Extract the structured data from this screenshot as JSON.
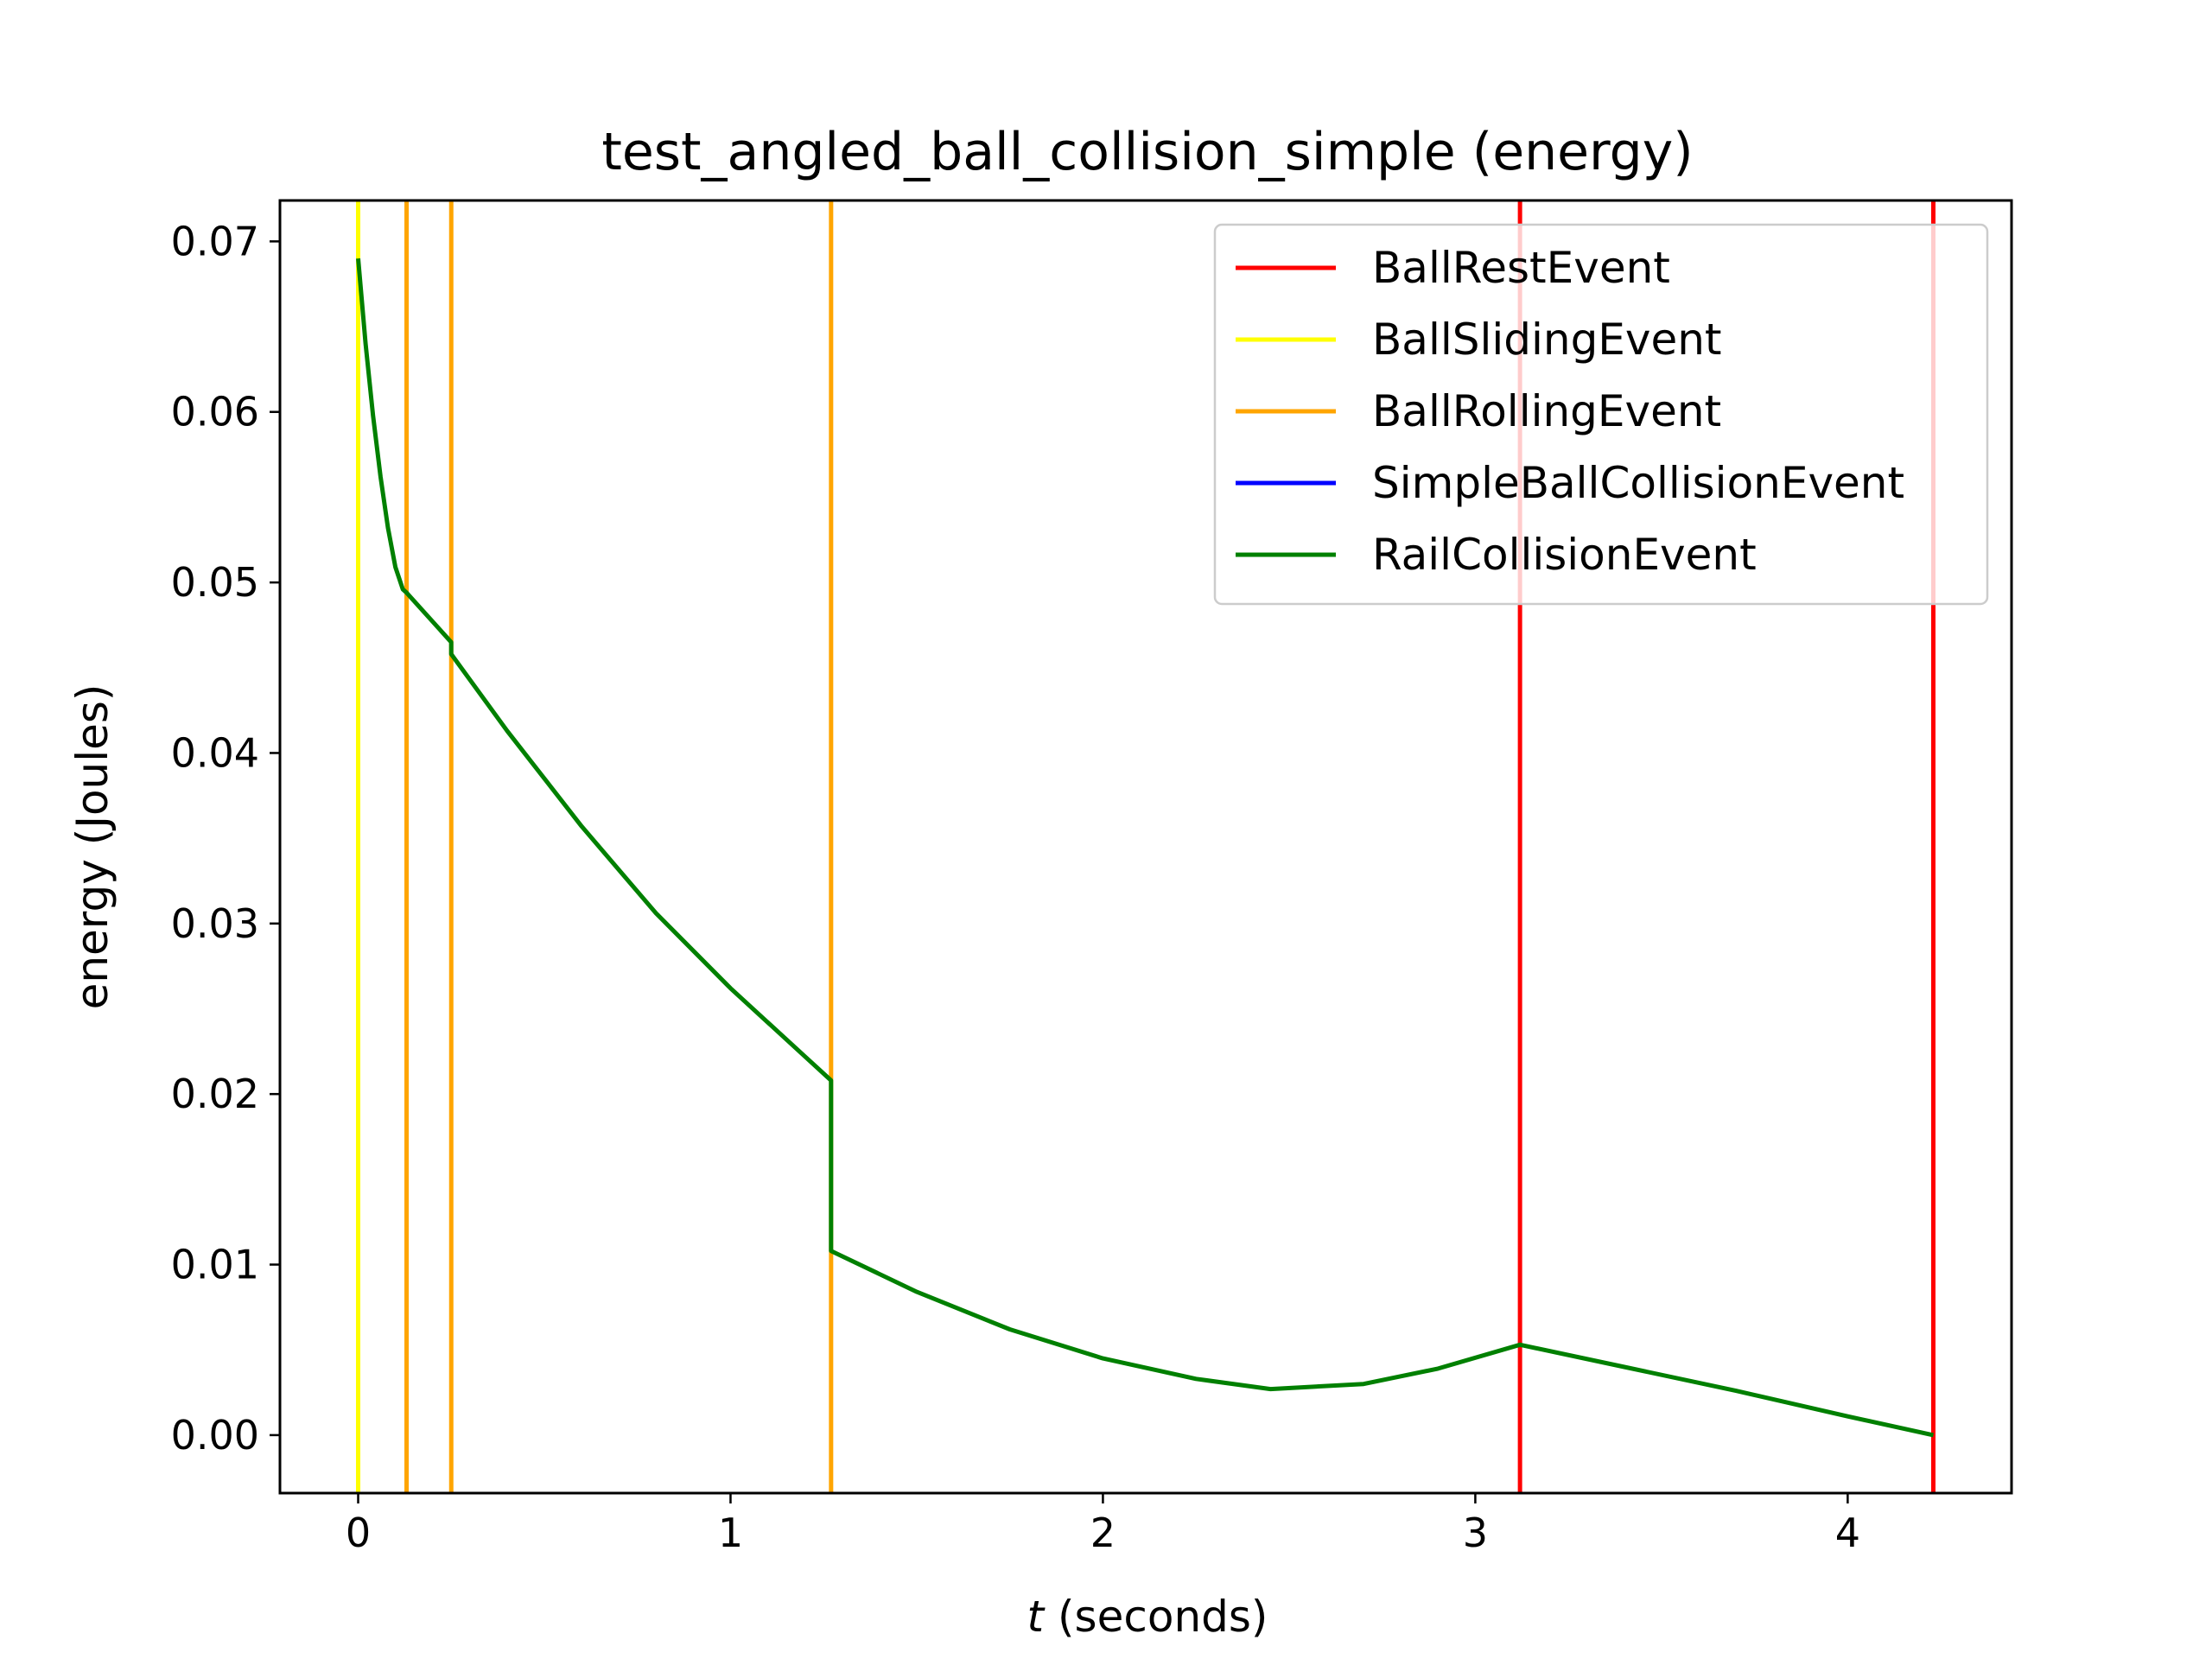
{
  "chart_data": {
    "type": "line",
    "title": "test_angled_ball_collision_simple (energy)",
    "xlabel_var": "t",
    "xlabel_rest": " (seconds)",
    "ylabel": "energy (Joules)",
    "xlim": [
      -0.21,
      4.44
    ],
    "ylim": [
      -0.0034,
      0.0724
    ],
    "x_ticks": [
      0,
      1,
      2,
      3,
      4
    ],
    "x_tick_labels": [
      "0",
      "1",
      "2",
      "3",
      "4"
    ],
    "y_ticks": [
      0.0,
      0.01,
      0.02,
      0.03,
      0.04,
      0.05,
      0.06,
      0.07
    ],
    "y_tick_labels": [
      "0.00",
      "0.01",
      "0.02",
      "0.03",
      "0.04",
      "0.05",
      "0.06",
      "0.07"
    ],
    "legend_position": "top-right",
    "legend": [
      {
        "label": "BallRestEvent",
        "color": "#ff0000"
      },
      {
        "label": "BallSlidingEvent",
        "color": "#ffff00"
      },
      {
        "label": "BallRollingEvent",
        "color": "#ffa500"
      },
      {
        "label": "SimpleBallCollisionEvent",
        "color": "#0000ff"
      },
      {
        "label": "RailCollisionEvent",
        "color": "#008000"
      }
    ],
    "event_lines": [
      {
        "event": "BallSlidingEvent",
        "t": 0.0,
        "color": "#ffff00"
      },
      {
        "event": "BallRollingEvent",
        "t": 0.13,
        "color": "#ffa500"
      },
      {
        "event": "BallRollingEvent",
        "t": 0.25,
        "color": "#ffa500"
      },
      {
        "event": "BallRollingEvent",
        "t": 1.27,
        "color": "#ffa500"
      },
      {
        "event": "BallRestEvent",
        "t": 3.12,
        "color": "#ff0000"
      },
      {
        "event": "BallRestEvent",
        "t": 4.23,
        "color": "#ff0000"
      }
    ],
    "series": [
      {
        "color": "#008000",
        "points": [
          [
            0.0,
            0.069
          ],
          [
            0.02,
            0.064
          ],
          [
            0.04,
            0.0598
          ],
          [
            0.06,
            0.0562
          ],
          [
            0.08,
            0.0532
          ],
          [
            0.1,
            0.0509
          ],
          [
            0.12,
            0.0496
          ],
          [
            0.13,
            0.0494
          ],
          [
            0.25,
            0.0465
          ],
          [
            0.25,
            0.0458
          ],
          [
            0.4,
            0.0413
          ],
          [
            0.6,
            0.0357
          ],
          [
            0.8,
            0.0306
          ],
          [
            1.0,
            0.0262
          ],
          [
            1.2,
            0.0222
          ],
          [
            1.27,
            0.0208
          ],
          [
            1.27,
            0.0108
          ],
          [
            1.5,
            0.0084
          ],
          [
            1.75,
            0.0062
          ],
          [
            2.0,
            0.0045
          ],
          [
            2.25,
            0.0033
          ],
          [
            2.45,
            0.0027
          ],
          [
            2.7,
            0.003
          ],
          [
            2.9,
            0.0039
          ],
          [
            3.12,
            0.0053
          ],
          [
            3.4,
            0.004
          ],
          [
            3.7,
            0.0026
          ],
          [
            4.0,
            0.0011
          ],
          [
            4.23,
            0.0
          ]
        ]
      }
    ]
  }
}
